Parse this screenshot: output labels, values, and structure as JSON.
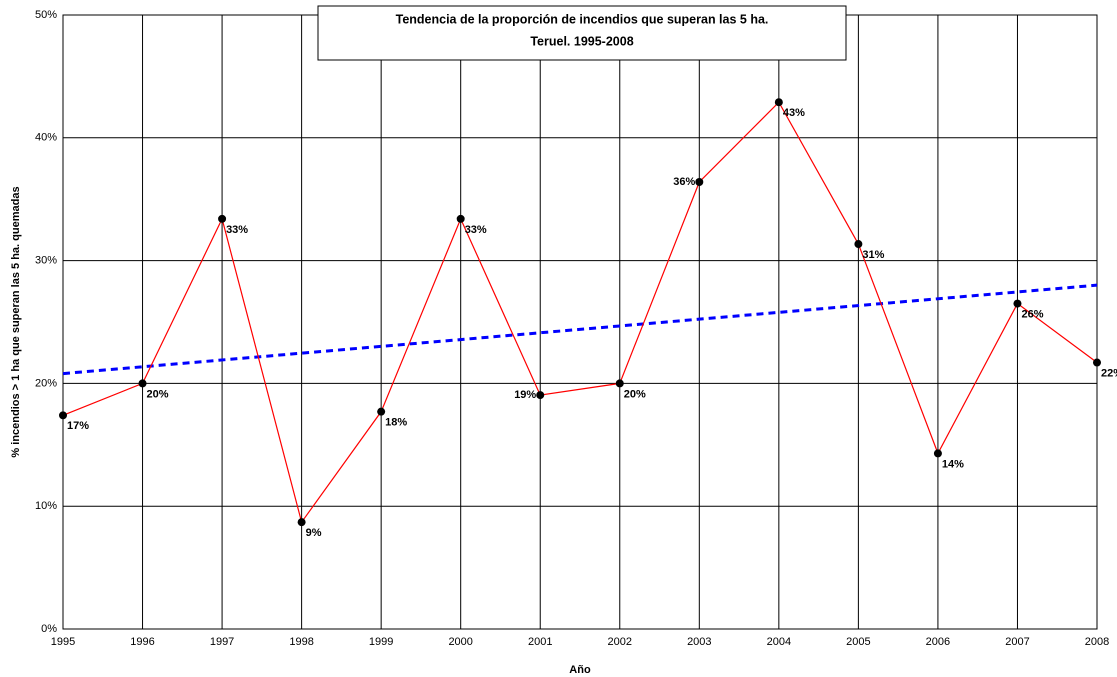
{
  "chart_data": {
    "type": "line",
    "title": [
      "Tendencia de la proporción de incendios que superan las 5 ha.",
      "Teruel. 1995-2008"
    ],
    "x_label": "Año",
    "y_label": "% incendios > 1 ha que superan las 5 ha. quemadas",
    "x": [
      1995,
      1996,
      1997,
      1998,
      1999,
      2000,
      2001,
      2002,
      2003,
      2004,
      2005,
      2006,
      2007,
      2008
    ],
    "series": [
      {
        "color": "#ff0000",
        "values": [
          17.4,
          20.0,
          33.4,
          8.7,
          17.7,
          33.4,
          19.05,
          20.0,
          36.4,
          42.9,
          31.35,
          14.3,
          26.5,
          21.7
        ],
        "value_labels": [
          "17%",
          "20%",
          "33%",
          "9%",
          "18%",
          "33%",
          "19%",
          "20%",
          "36%",
          "43%",
          "31%",
          "14%",
          "26%",
          "22%"
        ]
      }
    ],
    "trendline": {
      "color": "#0000ff",
      "x": [
        1995,
        2008
      ],
      "values": [
        20.8,
        28.0
      ]
    },
    "xlim": [
      1995,
      2008
    ],
    "xticks": [
      1995,
      1996,
      1997,
      1998,
      1999,
      2000,
      2001,
      2002,
      2003,
      2004,
      2005,
      2006,
      2007,
      2008
    ],
    "ylim": [
      0,
      50
    ],
    "yticks": [
      {
        "value": 0,
        "label": "0%"
      },
      {
        "value": 10,
        "label": "10%"
      },
      {
        "value": 20,
        "label": "20%"
      },
      {
        "value": 30,
        "label": "30%"
      },
      {
        "value": 40,
        "label": "40%"
      },
      {
        "value": 50,
        "label": "50%"
      }
    ],
    "grid": true
  }
}
